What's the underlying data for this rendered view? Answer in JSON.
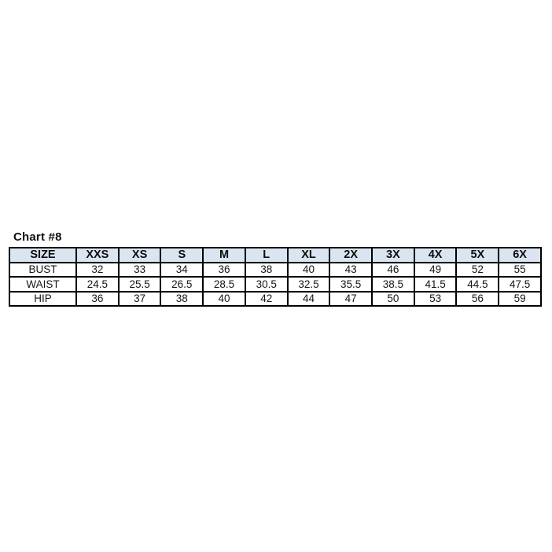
{
  "page": {
    "background": "#ffffff",
    "text_color": "#151515",
    "border_color": "#000000",
    "header_bg": "#dbe5f1"
  },
  "chart_data": {
    "type": "table",
    "title": "Chart #8",
    "columns": [
      "SIZE",
      "XXS",
      "XS",
      "S",
      "M",
      "L",
      "XL",
      "2X",
      "3X",
      "4X",
      "5X",
      "6X"
    ],
    "rows": [
      {
        "label": "BUST",
        "values": [
          "32",
          "33",
          "34",
          "36",
          "38",
          "40",
          "43",
          "46",
          "49",
          "52",
          "55"
        ]
      },
      {
        "label": "WAIST",
        "values": [
          "24.5",
          "25.5",
          "26.5",
          "28.5",
          "30.5",
          "32.5",
          "35.5",
          "38.5",
          "41.5",
          "44.5",
          "47.5"
        ]
      },
      {
        "label": "HIP",
        "values": [
          "36",
          "37",
          "38",
          "40",
          "42",
          "44",
          "47",
          "50",
          "53",
          "56",
          "59"
        ]
      }
    ]
  }
}
